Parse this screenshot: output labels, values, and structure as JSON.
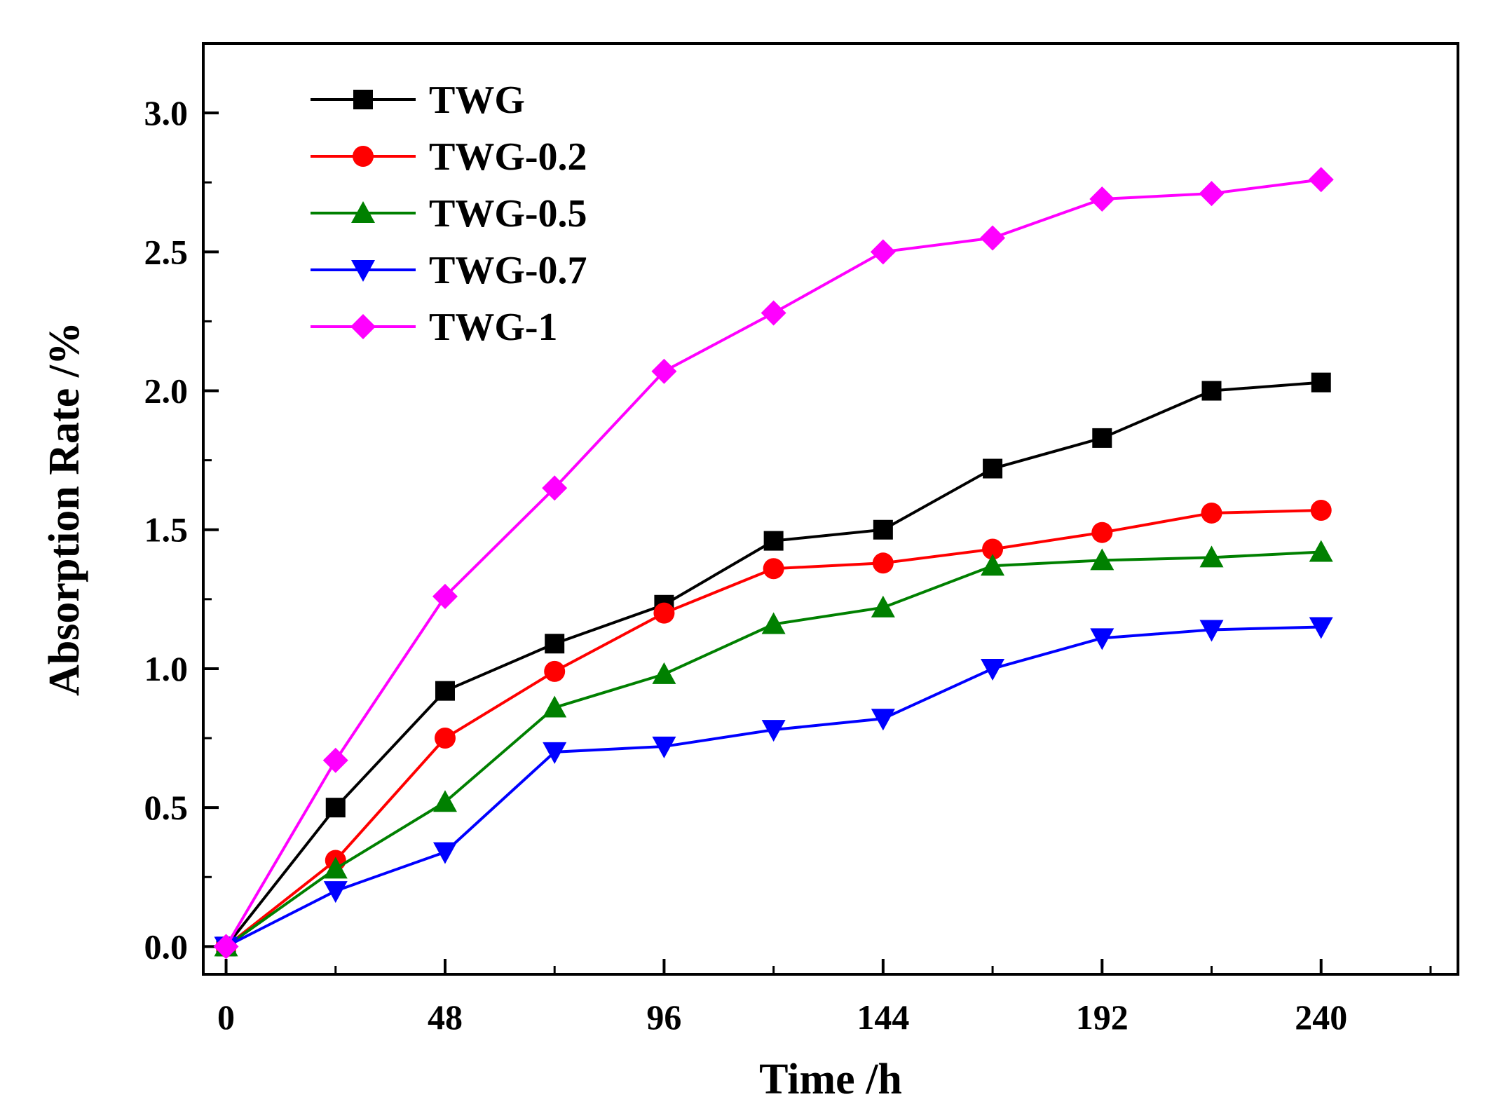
{
  "chart_data": {
    "type": "line",
    "title": "",
    "xlabel": "Time /h",
    "ylabel": "Absorption Rate /%",
    "xlim": [
      -5,
      270
    ],
    "ylim": [
      -0.1,
      3.25
    ],
    "x_ticks": [
      0,
      48,
      96,
      144,
      192,
      240
    ],
    "x_tick_labels": [
      "0",
      "48",
      "96",
      "144",
      "192",
      "240"
    ],
    "y_ticks": [
      0.0,
      0.5,
      1.0,
      1.5,
      2.0,
      2.5,
      3.0
    ],
    "y_tick_labels": [
      "0.0",
      "0.5",
      "1.0",
      "1.5",
      "2.0",
      "2.5",
      "3.0"
    ],
    "grid": false,
    "legend_position": "top-left",
    "x": [
      0,
      24,
      48,
      72,
      96,
      120,
      144,
      168,
      192,
      216,
      240
    ],
    "series": [
      {
        "name": "TWG",
        "color": "#000000",
        "marker": "square",
        "values": [
          0,
          0.5,
          0.92,
          1.09,
          1.23,
          1.46,
          1.5,
          1.72,
          1.83,
          2.0,
          2.03
        ]
      },
      {
        "name": "TWG-0.2",
        "color": "#ff0000",
        "marker": "circle",
        "values": [
          0,
          0.31,
          0.75,
          0.99,
          1.2,
          1.36,
          1.38,
          1.43,
          1.49,
          1.56,
          1.57
        ]
      },
      {
        "name": "TWG-0.5",
        "color": "#008000",
        "marker": "triangle-up",
        "values": [
          0,
          0.28,
          0.52,
          0.86,
          0.98,
          1.16,
          1.22,
          1.37,
          1.39,
          1.4,
          1.42
        ]
      },
      {
        "name": "TWG-0.7",
        "color": "#0000ff",
        "marker": "triangle-down",
        "values": [
          0,
          0.2,
          0.34,
          0.7,
          0.72,
          0.78,
          0.82,
          1.0,
          1.11,
          1.14,
          1.15
        ]
      },
      {
        "name": "TWG-1",
        "color": "#ff00ff",
        "marker": "diamond",
        "values": [
          0,
          0.67,
          1.26,
          1.65,
          2.07,
          2.28,
          2.5,
          2.55,
          2.69,
          2.71,
          2.76
        ]
      }
    ]
  }
}
